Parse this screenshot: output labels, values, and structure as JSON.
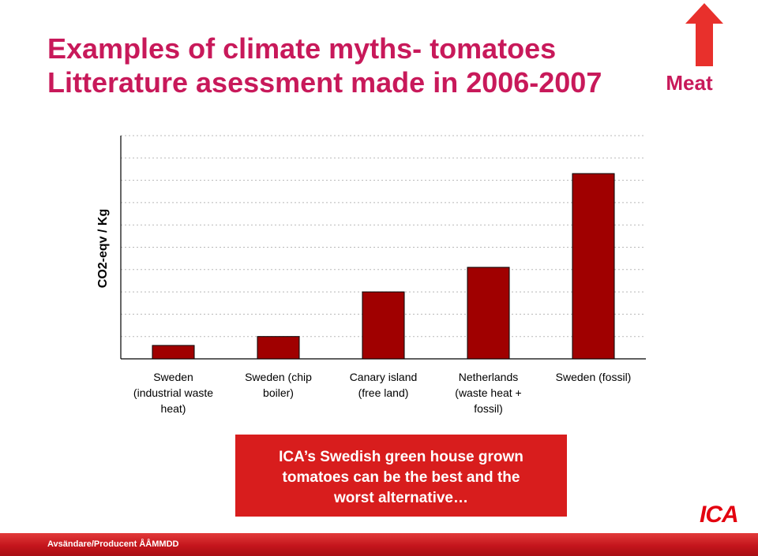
{
  "slide": {
    "title_line1": "Examples of climate myths- tomatoes",
    "title_line2": "Litterature asessment  made in 2006-2007",
    "meat_label": "Meat",
    "callout_line1": "ICA’s Swedish green house grown",
    "callout_line2": "tomatoes can be the best and the",
    "callout_line3": "worst alternative…",
    "footer": "Avsändare/Producent ÅÅMMDD",
    "logo_text": "ICA",
    "colors": {
      "title": "#c8195a",
      "bar": "#a00000",
      "callout": "#d81d1d",
      "footer": "#c4151c",
      "meat_arrow": "#e8302c"
    }
  },
  "chart_data": {
    "type": "bar",
    "ylabel": "CO2-eqv / Kg",
    "categories": [
      [
        "Sweden",
        "(industrial waste",
        "heat)"
      ],
      [
        "Sweden (chip",
        "boiler)"
      ],
      [
        "Canary island",
        "(free land)"
      ],
      [
        "Netherlands",
        "(waste heat +",
        "fossil)"
      ],
      [
        "Sweden (fossil)"
      ]
    ],
    "values": [
      0.6,
      1.0,
      3.0,
      4.1,
      8.3
    ],
    "ylim": [
      0,
      10
    ],
    "y_tick_labels_shown": false,
    "grid": true,
    "gridline_count": 10
  }
}
